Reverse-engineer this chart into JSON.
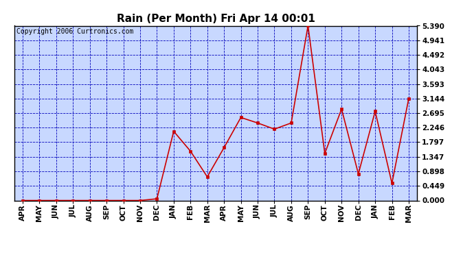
{
  "title": "Rain (Per Month) Fri Apr 14 00:01",
  "copyright": "Copyright 2006 Curtronics.com",
  "categories": [
    "APR",
    "MAY",
    "JUN",
    "JUL",
    "AUG",
    "SEP",
    "OCT",
    "NOV",
    "DEC",
    "JAN",
    "FEB",
    "MAR",
    "APR",
    "MAY",
    "JUN",
    "JUL",
    "AUG",
    "SEP",
    "OCT",
    "NOV",
    "DEC",
    "JAN",
    "FEB",
    "MAR"
  ],
  "values": [
    0.0,
    0.0,
    0.0,
    0.0,
    0.0,
    0.0,
    0.0,
    0.0,
    0.051,
    2.133,
    1.52,
    0.728,
    1.631,
    2.559,
    2.39,
    2.2,
    2.39,
    5.39,
    1.45,
    2.82,
    0.82,
    2.75,
    0.53,
    3.144
  ],
  "line_color": "#cc0000",
  "marker_color": "#cc0000",
  "bg_color": "#c8d8ff",
  "outer_bg": "#ffffff",
  "grid_color": "#0000bb",
  "border_color": "#000000",
  "title_color": "#000000",
  "copyright_color": "#000000",
  "yticks": [
    0.0,
    0.449,
    0.898,
    1.347,
    1.797,
    2.246,
    2.695,
    3.144,
    3.593,
    4.043,
    4.492,
    4.941,
    5.39
  ],
  "ylim": [
    0.0,
    5.39
  ],
  "title_fontsize": 11,
  "copyright_fontsize": 7,
  "tick_fontsize": 7.5
}
